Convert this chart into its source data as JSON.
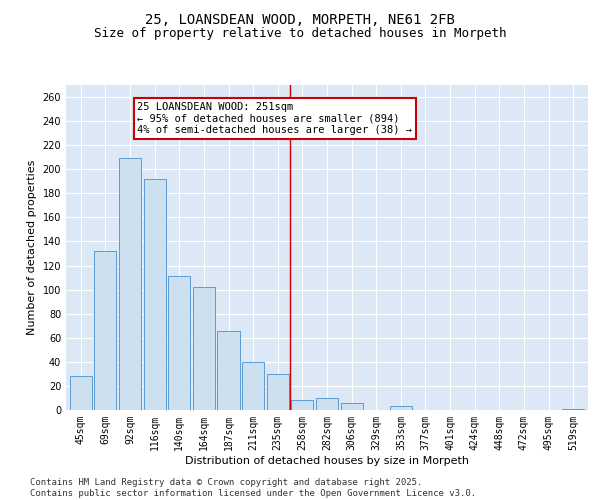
{
  "title": "25, LOANSDEAN WOOD, MORPETH, NE61 2FB",
  "subtitle": "Size of property relative to detached houses in Morpeth",
  "xlabel": "Distribution of detached houses by size in Morpeth",
  "ylabel": "Number of detached properties",
  "categories": [
    "45sqm",
    "69sqm",
    "92sqm",
    "116sqm",
    "140sqm",
    "164sqm",
    "187sqm",
    "211sqm",
    "235sqm",
    "258sqm",
    "282sqm",
    "306sqm",
    "329sqm",
    "353sqm",
    "377sqm",
    "401sqm",
    "424sqm",
    "448sqm",
    "472sqm",
    "495sqm",
    "519sqm"
  ],
  "values": [
    28,
    132,
    209,
    192,
    111,
    102,
    66,
    40,
    30,
    8,
    10,
    6,
    0,
    3,
    0,
    0,
    0,
    0,
    0,
    0,
    1
  ],
  "bar_color_fill": "#cce0f0",
  "bar_color_edge": "#5b9bd5",
  "property_line_x": 8.5,
  "property_line_color": "#cc0000",
  "annotation_text": "25 LOANSDEAN WOOD: 251sqm\n← 95% of detached houses are smaller (894)\n4% of semi-detached houses are larger (38) →",
  "annotation_box_color": "#cc0000",
  "ylim": [
    0,
    270
  ],
  "yticks": [
    0,
    20,
    40,
    60,
    80,
    100,
    120,
    140,
    160,
    180,
    200,
    220,
    240,
    260
  ],
  "background_color": "#dce8f5",
  "footnote": "Contains HM Land Registry data © Crown copyright and database right 2025.\nContains public sector information licensed under the Open Government Licence v3.0.",
  "title_fontsize": 10,
  "subtitle_fontsize": 9,
  "xlabel_fontsize": 8,
  "ylabel_fontsize": 8,
  "tick_fontsize": 7,
  "annotation_fontsize": 7.5,
  "footnote_fontsize": 6.5
}
